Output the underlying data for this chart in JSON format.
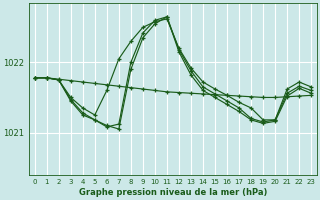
{
  "title": "Graphe pression niveau de la mer (hPa)",
  "bg_color": "#cce8e8",
  "grid_color": "#ffffff",
  "line_color": "#1a5c1a",
  "xlim": [
    -0.5,
    23.5
  ],
  "ylim": [
    1020.4,
    1022.85
  ],
  "yticks": [
    1021,
    1022
  ],
  "xticks": [
    0,
    1,
    2,
    3,
    4,
    5,
    6,
    7,
    8,
    9,
    10,
    11,
    12,
    13,
    14,
    15,
    16,
    17,
    18,
    19,
    20,
    21,
    22,
    23
  ],
  "lines": [
    {
      "x": [
        0,
        1,
        2,
        3,
        4,
        5,
        6,
        7,
        8,
        9,
        10,
        11,
        12,
        13,
        14,
        15,
        16,
        17,
        18,
        19,
        20,
        21,
        22,
        23
      ],
      "y": [
        1021.78,
        1021.78,
        1021.76,
        1021.74,
        1021.72,
        1021.7,
        1021.68,
        1021.66,
        1021.64,
        1021.62,
        1021.6,
        1021.58,
        1021.57,
        1021.56,
        1021.55,
        1021.54,
        1021.53,
        1021.52,
        1021.51,
        1021.5,
        1021.5,
        1021.51,
        1021.52,
        1021.53
      ]
    },
    {
      "x": [
        0,
        1,
        2,
        3,
        4,
        5,
        6,
        7,
        8,
        9,
        10,
        11,
        12,
        13,
        14,
        15,
        16,
        17,
        18,
        19,
        20,
        21,
        22,
        23
      ],
      "y": [
        1021.78,
        1021.78,
        1021.75,
        1021.5,
        1021.35,
        1021.25,
        1021.6,
        1022.05,
        1022.3,
        1022.5,
        1022.58,
        1022.62,
        1022.2,
        1021.92,
        1021.72,
        1021.62,
        1021.53,
        1021.43,
        1021.35,
        1021.18,
        1021.18,
        1021.62,
        1021.72,
        1021.65
      ]
    },
    {
      "x": [
        0,
        1,
        2,
        3,
        4,
        5,
        6,
        7,
        8,
        9,
        10,
        11,
        12,
        13,
        14,
        15,
        16,
        17,
        18,
        19,
        20,
        21,
        22,
        23
      ],
      "y": [
        1021.78,
        1021.78,
        1021.75,
        1021.47,
        1021.28,
        1021.18,
        1021.08,
        1021.12,
        1022.0,
        1022.42,
        1022.6,
        1022.65,
        1022.18,
        1021.88,
        1021.65,
        1021.55,
        1021.45,
        1021.35,
        1021.2,
        1021.15,
        1021.18,
        1021.56,
        1021.66,
        1021.6
      ]
    },
    {
      "x": [
        0,
        1,
        2,
        3,
        4,
        5,
        6,
        7,
        8,
        9,
        10,
        11,
        12,
        13,
        14,
        15,
        16,
        17,
        18,
        19,
        20,
        21,
        22,
        23
      ],
      "y": [
        1021.78,
        1021.78,
        1021.75,
        1021.45,
        1021.25,
        1021.18,
        1021.1,
        1021.05,
        1021.9,
        1022.35,
        1022.55,
        1022.65,
        1022.15,
        1021.82,
        1021.6,
        1021.5,
        1021.4,
        1021.3,
        1021.18,
        1021.13,
        1021.16,
        1021.52,
        1021.63,
        1021.56
      ]
    }
  ]
}
